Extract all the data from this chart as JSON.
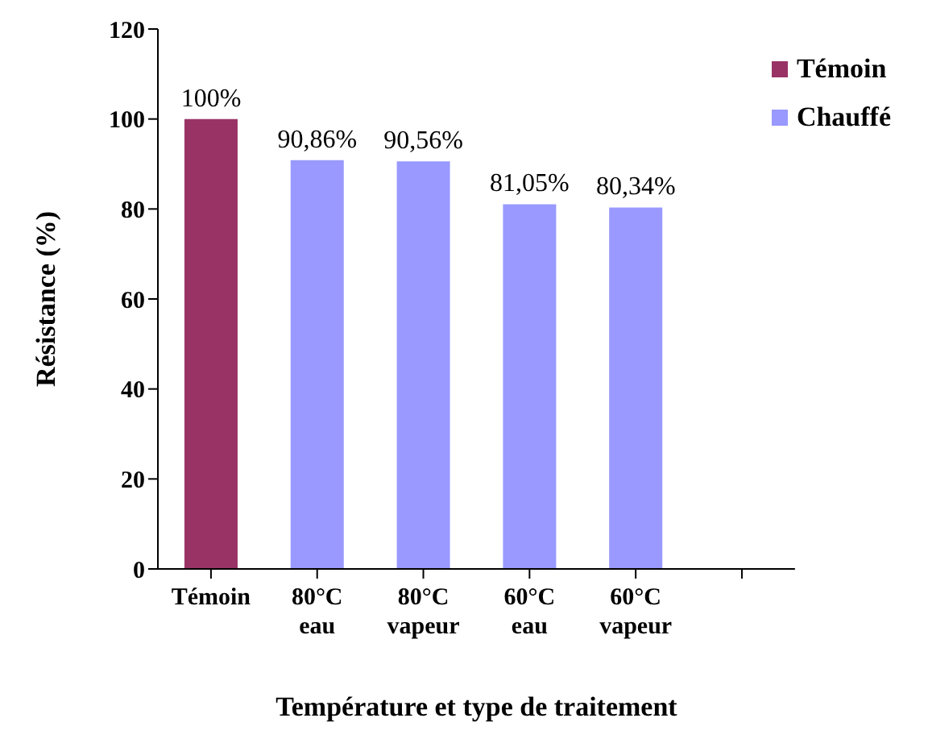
{
  "chart_data": {
    "type": "bar",
    "stacked": true,
    "xlabel": "Température et type de traitement",
    "ylabel": "Résistance (%)",
    "categories": [
      "Témoin",
      "80°C eau",
      "80°C vapeur",
      "60°C eau",
      "60°C vapeur",
      null
    ],
    "series": [
      {
        "name": "Témoin",
        "color": "#993366",
        "values": [
          100,
          null,
          null,
          null,
          null,
          null
        ],
        "value_labels": [
          "100%",
          null,
          null,
          null,
          null,
          null
        ]
      },
      {
        "name": "Chauffé",
        "color": "#9999ff",
        "values": [
          null,
          90.86,
          90.56,
          81.05,
          80.34,
          null
        ],
        "value_labels": [
          null,
          "90,86%",
          "90,56%",
          "81,05%",
          "80,34%",
          null
        ]
      }
    ],
    "ylim": [
      0,
      120
    ],
    "yticks": [
      0,
      20,
      40,
      60,
      80,
      100,
      120
    ],
    "grid": false,
    "legend": "top right"
  }
}
